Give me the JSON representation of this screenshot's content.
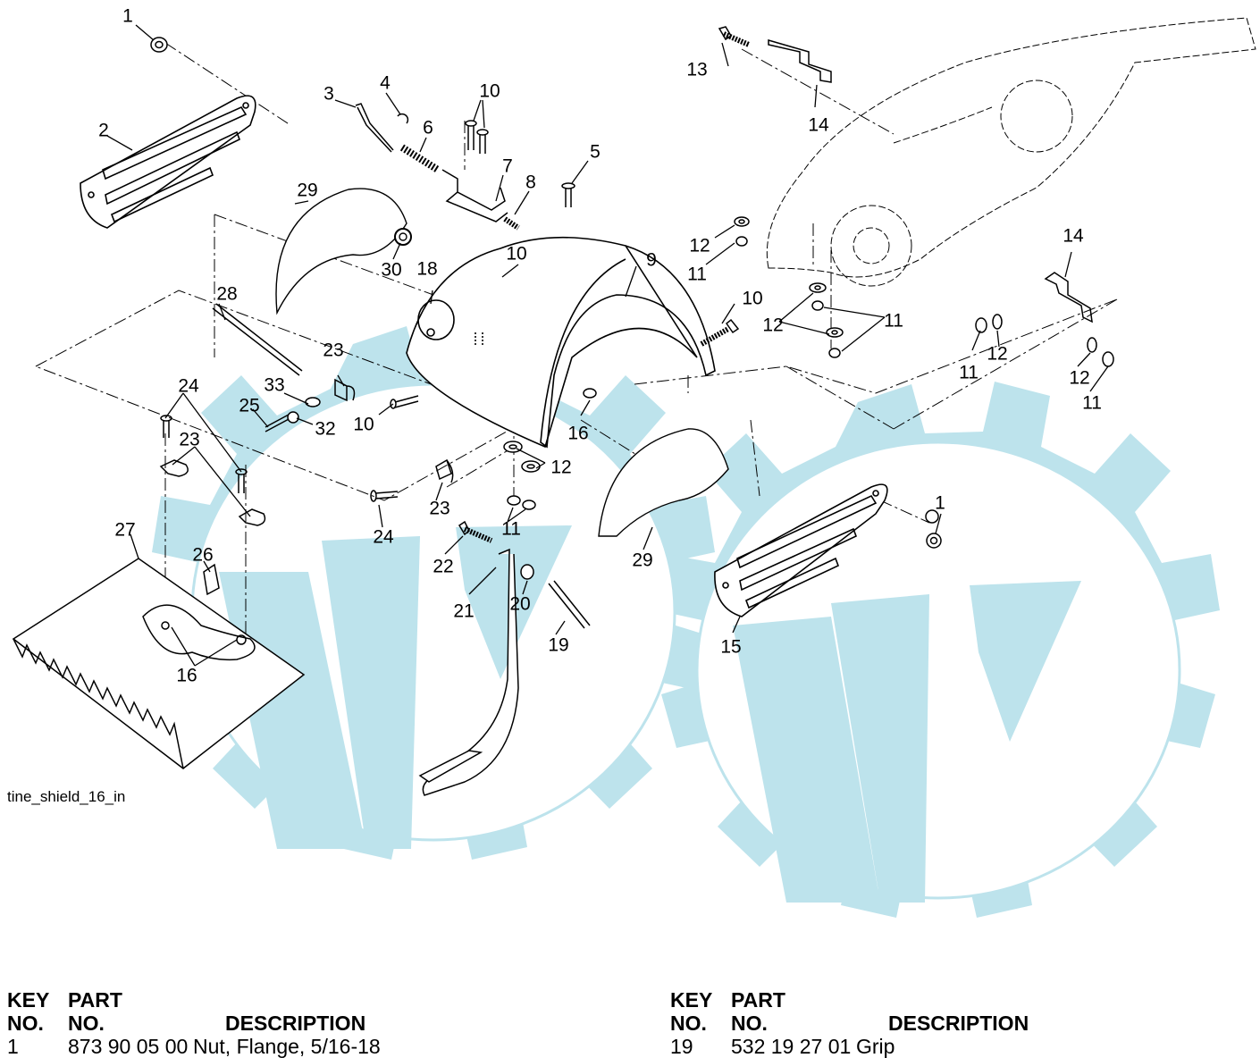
{
  "diagram": {
    "filename": "tine_shield_16_in",
    "callouts": [
      {
        "id": "c1a",
        "label": "1"
      },
      {
        "id": "c2",
        "label": "2"
      },
      {
        "id": "c3",
        "label": "3"
      },
      {
        "id": "c4",
        "label": "4"
      },
      {
        "id": "c5",
        "label": "5"
      },
      {
        "id": "c6",
        "label": "6"
      },
      {
        "id": "c7",
        "label": "7"
      },
      {
        "id": "c8",
        "label": "8"
      },
      {
        "id": "c9",
        "label": "9"
      },
      {
        "id": "c10a",
        "label": "10"
      },
      {
        "id": "c10b",
        "label": "10"
      },
      {
        "id": "c10c",
        "label": "10"
      },
      {
        "id": "c10d",
        "label": "10"
      },
      {
        "id": "c11a",
        "label": "11"
      },
      {
        "id": "c11b",
        "label": "11"
      },
      {
        "id": "c11c",
        "label": "11"
      },
      {
        "id": "c11d",
        "label": "11"
      },
      {
        "id": "c11e",
        "label": "11"
      },
      {
        "id": "c12a",
        "label": "12"
      },
      {
        "id": "c12b",
        "label": "12"
      },
      {
        "id": "c12c",
        "label": "12"
      },
      {
        "id": "c12d",
        "label": "12"
      },
      {
        "id": "c12e",
        "label": "12"
      },
      {
        "id": "c13",
        "label": "13"
      },
      {
        "id": "c14a",
        "label": "14"
      },
      {
        "id": "c14b",
        "label": "14"
      },
      {
        "id": "c15",
        "label": "15"
      },
      {
        "id": "c16a",
        "label": "16"
      },
      {
        "id": "c16b",
        "label": "16"
      },
      {
        "id": "c18",
        "label": "18"
      },
      {
        "id": "c19",
        "label": "19"
      },
      {
        "id": "c20",
        "label": "20"
      },
      {
        "id": "c21",
        "label": "21"
      },
      {
        "id": "c22",
        "label": "22"
      },
      {
        "id": "c23a",
        "label": "23"
      },
      {
        "id": "c23b",
        "label": "23"
      },
      {
        "id": "c23c",
        "label": "23"
      },
      {
        "id": "c24a",
        "label": "24"
      },
      {
        "id": "c24b",
        "label": "24"
      },
      {
        "id": "c25",
        "label": "25"
      },
      {
        "id": "c26",
        "label": "26"
      },
      {
        "id": "c27",
        "label": "27"
      },
      {
        "id": "c28",
        "label": "28"
      },
      {
        "id": "c29a",
        "label": "29"
      },
      {
        "id": "c29b",
        "label": "29"
      },
      {
        "id": "c30",
        "label": "30"
      },
      {
        "id": "c32",
        "label": "32"
      },
      {
        "id": "c33",
        "label": "33"
      },
      {
        "id": "c1b",
        "label": "1"
      }
    ]
  },
  "parts_list": {
    "header": {
      "key_line1": "KEY",
      "key_line2": "NO.",
      "part_line1": "PART",
      "part_line2": "NO.",
      "description": "DESCRIPTION"
    },
    "left_rows": [
      {
        "key": "1",
        "part": "873 90 05 00",
        "description": "Nut, Flange, 5/16-18"
      }
    ],
    "right_rows": [
      {
        "key": "19",
        "part": "532 19 27 01",
        "description": "Grip"
      }
    ]
  },
  "colors": {
    "watermark": "#bde3ec",
    "line": "#000000"
  }
}
